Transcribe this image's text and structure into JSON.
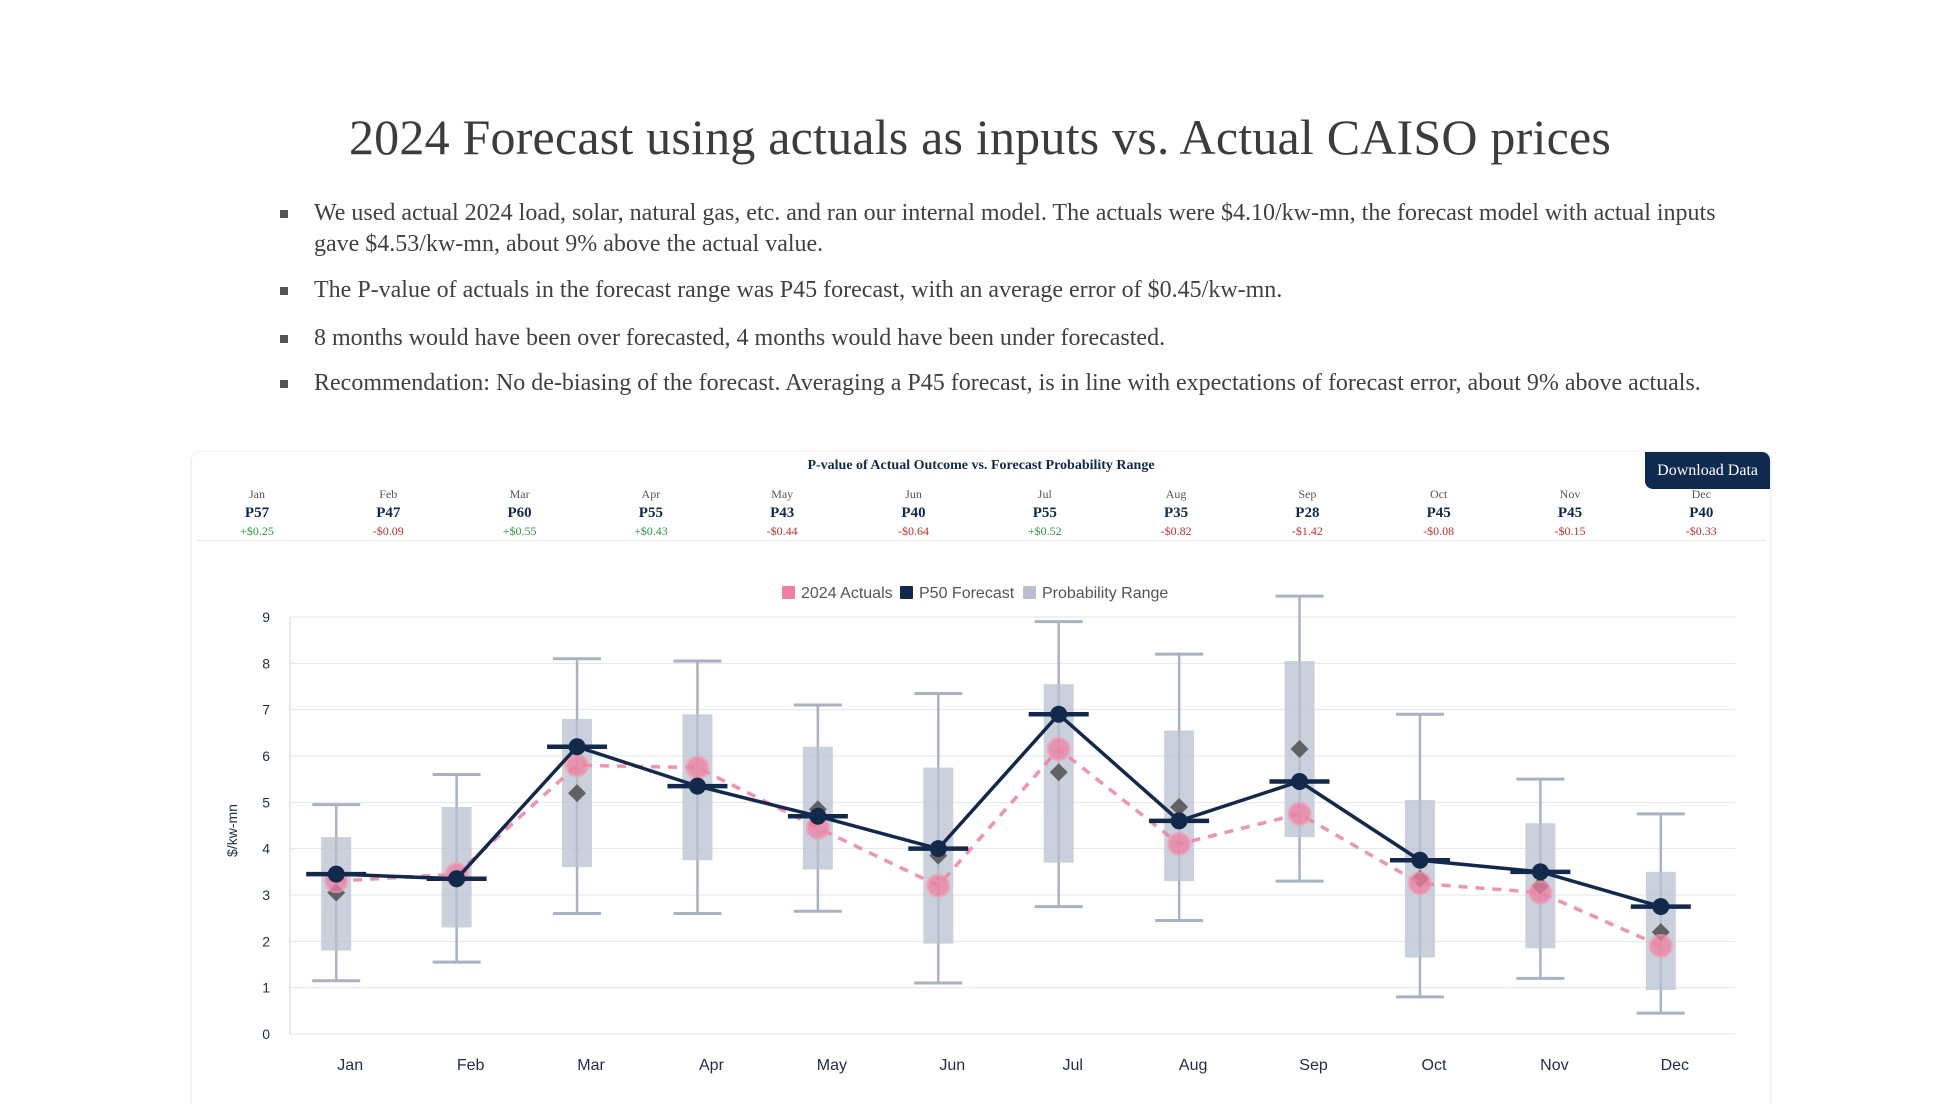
{
  "slide": {
    "title": "2024 Forecast using actuals as inputs vs. Actual CAISO prices",
    "bullets": [
      "We used actual 2024 load, solar, natural gas, etc. and ran our internal model. The actuals were $4.10/kw-mn, the forecast model with actual inputs gave $4.53/kw-mn, about 9% above the actual value.",
      "The P-value of actuals in the forecast range was P45 forecast, with an average error of $0.45/kw-mn.",
      "8 months would have been over forecasted, 4 months would have been under forecasted.",
      "Recommendation: No de-biasing of the forecast. Averaging a P45 forecast, is in line with expectations of forecast error, about 9% above actuals."
    ]
  },
  "card": {
    "download_label": "Download Data",
    "pvalue_title": "P-value of Actual Outcome vs. Forecast Probability Range",
    "pvalues": [
      {
        "month": "Jan",
        "p": "P57",
        "diff": "+$0.25",
        "sign": "pos"
      },
      {
        "month": "Feb",
        "p": "P47",
        "diff": "-$0.09",
        "sign": "neg"
      },
      {
        "month": "Mar",
        "p": "P60",
        "diff": "+$0.55",
        "sign": "pos"
      },
      {
        "month": "Apr",
        "p": "P55",
        "diff": "+$0.43",
        "sign": "pos"
      },
      {
        "month": "May",
        "p": "P43",
        "diff": "-$0.44",
        "sign": "neg"
      },
      {
        "month": "Jun",
        "p": "P40",
        "diff": "-$0.64",
        "sign": "neg"
      },
      {
        "month": "Jul",
        "p": "P55",
        "diff": "+$0.52",
        "sign": "pos"
      },
      {
        "month": "Aug",
        "p": "P35",
        "diff": "-$0.82",
        "sign": "neg"
      },
      {
        "month": "Sep",
        "p": "P28",
        "diff": "-$1.42",
        "sign": "neg"
      },
      {
        "month": "Oct",
        "p": "P45",
        "diff": "-$0.08",
        "sign": "neg"
      },
      {
        "month": "Nov",
        "p": "P45",
        "diff": "-$0.15",
        "sign": "neg"
      },
      {
        "month": "Dec",
        "p": "P40",
        "diff": "-$0.33",
        "sign": "neg"
      }
    ]
  },
  "chart_data": {
    "type": "line",
    "title": "",
    "ylabel": "$/kw-mn",
    "xlabel": "",
    "ylim": [
      0,
      9
    ],
    "yticks": [
      0,
      1,
      2,
      3,
      4,
      5,
      6,
      7,
      8,
      9
    ],
    "grid": true,
    "legend_position": "top-center",
    "categories": [
      "Jan",
      "Feb",
      "Mar",
      "Apr",
      "May",
      "Jun",
      "Jul",
      "Aug",
      "Sep",
      "Oct",
      "Nov",
      "Dec"
    ],
    "series": [
      {
        "name": "2024 Actuals",
        "style": "dashed-line-circles",
        "color": "#f07fa0",
        "values": [
          3.3,
          3.45,
          5.8,
          5.75,
          4.45,
          3.2,
          6.15,
          4.1,
          4.75,
          3.25,
          3.05,
          1.9
        ]
      },
      {
        "name": "P50 Forecast",
        "style": "solid-line-circles",
        "color": "#13294b",
        "values": [
          3.45,
          3.35,
          6.2,
          5.35,
          4.7,
          4.0,
          6.9,
          4.6,
          5.45,
          3.75,
          3.5,
          2.75
        ]
      },
      {
        "name": "Probability Range",
        "style": "box-whisker",
        "color": "#b9c1d0",
        "whisker_low": [
          1.15,
          1.55,
          2.6,
          2.6,
          2.65,
          1.1,
          2.75,
          2.45,
          3.3,
          0.8,
          1.2,
          0.45
        ],
        "box_low": [
          1.8,
          2.3,
          3.6,
          3.75,
          3.55,
          1.95,
          3.7,
          3.3,
          4.25,
          1.65,
          1.85,
          0.95
        ],
        "box_high": [
          4.25,
          4.9,
          6.8,
          6.9,
          6.2,
          5.75,
          7.55,
          6.55,
          8.05,
          5.05,
          4.55,
          3.5
        ],
        "whisker_high": [
          4.95,
          5.6,
          8.1,
          8.05,
          7.1,
          7.35,
          8.9,
          8.2,
          9.45,
          6.9,
          5.5,
          4.75
        ],
        "median": [
          3.05,
          3.35,
          5.2,
          5.35,
          4.85,
          3.85,
          5.65,
          4.9,
          6.15,
          3.35,
          3.2,
          2.2
        ]
      }
    ],
    "colors": {
      "grid": "#e3e5e8",
      "axis_text": "#1f2d4a",
      "marker_median": "#555555"
    }
  }
}
